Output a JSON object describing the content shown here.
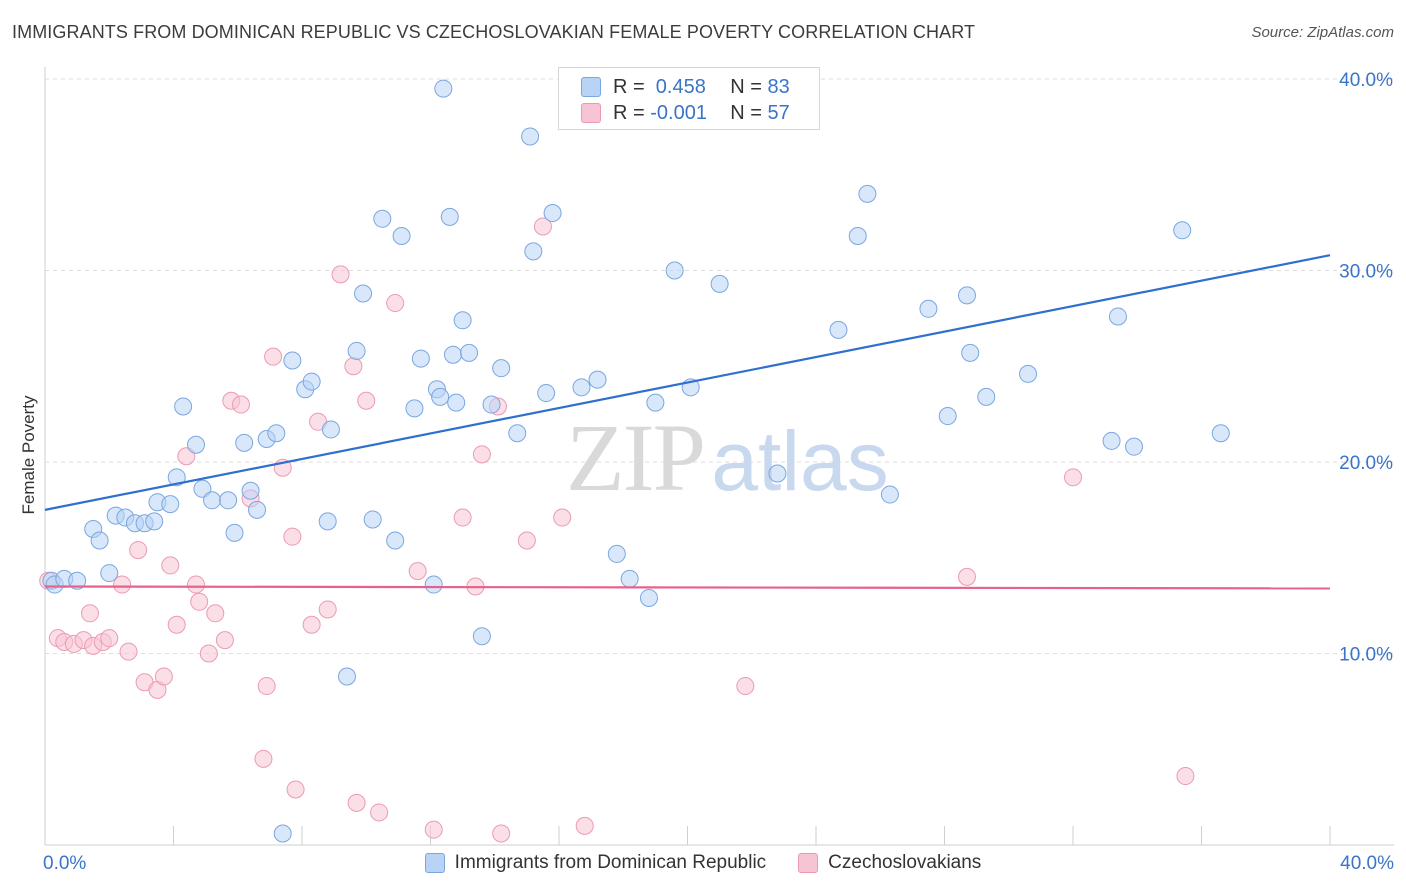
{
  "title": "IMMIGRANTS FROM DOMINICAN REPUBLIC VS CZECHOSLOVAKIAN FEMALE POVERTY CORRELATION CHART",
  "source": "Source: ZipAtlas.com",
  "watermark": {
    "zip": "ZIP",
    "atlas": "atlas"
  },
  "colors": {
    "blue_fill": "#b8d3f5",
    "blue_stroke": "#7aa7e0",
    "blue_line": "#2f6fcf",
    "pink_fill": "#f7c4d3",
    "pink_stroke": "#ec9ab4",
    "pink_line": "#e6628c",
    "axis_label": "#3a74c8",
    "grid": "#dcdcdc"
  },
  "legend": {
    "rows": [
      {
        "r_label": "R = ",
        "r_value": " 0.458",
        "n_label": "N = ",
        "n_value": "83"
      },
      {
        "r_label": "R = ",
        "r_value": "-0.001",
        "n_label": "N = ",
        "n_value": "57"
      }
    ]
  },
  "bottom_legend": [
    "Immigrants from Dominican Republic",
    "Czechoslovakians"
  ],
  "chart_data": {
    "type": "scatter",
    "title": "IMMIGRANTS FROM DOMINICAN REPUBLIC VS CZECHOSLOVAKIAN FEMALE POVERTY CORRELATION CHART",
    "xlabel": "",
    "ylabel": "Female Poverty",
    "xlim": [
      0,
      40
    ],
    "ylim": [
      0,
      40
    ],
    "x_tick_labels": [
      "0.0%",
      "40.0%"
    ],
    "y_ticks": [
      10,
      20,
      30,
      40
    ],
    "y_tick_labels": [
      "10.0%",
      "20.0%",
      "30.0%",
      "40.0%"
    ],
    "series": [
      {
        "name": "Immigrants from Dominican Republic",
        "R": 0.458,
        "N": 83,
        "trend": {
          "x": [
            0,
            40
          ],
          "y": [
            17.5,
            30.8
          ]
        },
        "points": [
          [
            0.2,
            13.8
          ],
          [
            0.3,
            13.6
          ],
          [
            0.6,
            13.9
          ],
          [
            1.0,
            13.8
          ],
          [
            1.5,
            16.5
          ],
          [
            1.7,
            15.9
          ],
          [
            2.0,
            14.2
          ],
          [
            2.2,
            17.2
          ],
          [
            2.5,
            17.1
          ],
          [
            2.8,
            16.8
          ],
          [
            3.1,
            16.8
          ],
          [
            3.4,
            16.9
          ],
          [
            3.5,
            17.9
          ],
          [
            3.9,
            17.8
          ],
          [
            4.1,
            19.2
          ],
          [
            4.3,
            22.9
          ],
          [
            4.7,
            20.9
          ],
          [
            4.9,
            18.6
          ],
          [
            5.2,
            18.0
          ],
          [
            5.7,
            18.0
          ],
          [
            5.9,
            16.3
          ],
          [
            6.2,
            21.0
          ],
          [
            6.4,
            18.5
          ],
          [
            6.6,
            17.5
          ],
          [
            6.9,
            21.2
          ],
          [
            7.2,
            21.5
          ],
          [
            7.4,
            0.6
          ],
          [
            7.7,
            25.3
          ],
          [
            8.1,
            23.8
          ],
          [
            8.3,
            24.2
          ],
          [
            8.8,
            16.9
          ],
          [
            8.9,
            21.7
          ],
          [
            9.4,
            8.8
          ],
          [
            9.7,
            25.8
          ],
          [
            9.9,
            28.8
          ],
          [
            10.2,
            17.0
          ],
          [
            10.5,
            32.7
          ],
          [
            10.9,
            15.9
          ],
          [
            11.1,
            31.8
          ],
          [
            11.5,
            22.8
          ],
          [
            11.7,
            25.4
          ],
          [
            12.1,
            13.6
          ],
          [
            12.2,
            23.8
          ],
          [
            12.6,
            32.8
          ],
          [
            12.7,
            25.6
          ],
          [
            13.0,
            27.4
          ],
          [
            12.8,
            23.1
          ],
          [
            12.3,
            23.4
          ],
          [
            12.4,
            39.5
          ],
          [
            13.2,
            25.7
          ],
          [
            13.6,
            10.9
          ],
          [
            13.9,
            23.0
          ],
          [
            14.2,
            24.9
          ],
          [
            14.7,
            21.5
          ],
          [
            15.1,
            37.0
          ],
          [
            15.2,
            31.0
          ],
          [
            15.6,
            23.6
          ],
          [
            15.8,
            33.0
          ],
          [
            16.7,
            23.9
          ],
          [
            17.2,
            24.3
          ],
          [
            17.3,
            38.5
          ],
          [
            17.8,
            15.2
          ],
          [
            18.2,
            13.9
          ],
          [
            18.8,
            12.9
          ],
          [
            19.0,
            23.1
          ],
          [
            19.6,
            30.0
          ],
          [
            20.1,
            23.9
          ],
          [
            21.0,
            29.3
          ],
          [
            22.8,
            19.4
          ],
          [
            24.7,
            26.9
          ],
          [
            25.3,
            31.8
          ],
          [
            25.6,
            34.0
          ],
          [
            26.3,
            18.3
          ],
          [
            27.5,
            28.0
          ],
          [
            28.1,
            22.4
          ],
          [
            28.7,
            28.7
          ],
          [
            28.8,
            25.7
          ],
          [
            29.3,
            23.4
          ],
          [
            30.6,
            24.6
          ],
          [
            33.2,
            21.1
          ],
          [
            33.4,
            27.6
          ],
          [
            33.9,
            20.8
          ],
          [
            35.4,
            32.1
          ],
          [
            36.6,
            21.5
          ]
        ]
      },
      {
        "name": "Czechoslovakians",
        "R": -0.001,
        "N": 57,
        "trend": {
          "x": [
            0,
            40
          ],
          "y": [
            13.5,
            13.4
          ]
        },
        "points": [
          [
            0.1,
            13.8
          ],
          [
            0.4,
            10.8
          ],
          [
            0.6,
            10.6
          ],
          [
            0.9,
            10.5
          ],
          [
            1.2,
            10.7
          ],
          [
            1.4,
            12.1
          ],
          [
            1.5,
            10.4
          ],
          [
            1.8,
            10.6
          ],
          [
            2.0,
            10.8
          ],
          [
            2.4,
            13.6
          ],
          [
            2.6,
            10.1
          ],
          [
            2.9,
            15.4
          ],
          [
            3.1,
            8.5
          ],
          [
            3.5,
            8.1
          ],
          [
            3.7,
            8.8
          ],
          [
            3.9,
            14.6
          ],
          [
            4.1,
            11.5
          ],
          [
            4.4,
            20.3
          ],
          [
            4.7,
            13.6
          ],
          [
            4.8,
            12.7
          ],
          [
            5.1,
            10.0
          ],
          [
            5.3,
            12.1
          ],
          [
            5.6,
            10.7
          ],
          [
            5.8,
            23.2
          ],
          [
            6.1,
            23.0
          ],
          [
            6.4,
            18.1
          ],
          [
            6.8,
            4.5
          ],
          [
            6.9,
            8.3
          ],
          [
            7.1,
            25.5
          ],
          [
            7.4,
            19.7
          ],
          [
            7.7,
            16.1
          ],
          [
            7.8,
            2.9
          ],
          [
            8.3,
            11.5
          ],
          [
            8.5,
            22.1
          ],
          [
            8.8,
            12.3
          ],
          [
            9.2,
            29.8
          ],
          [
            9.6,
            25.0
          ],
          [
            9.7,
            2.2
          ],
          [
            10.0,
            23.2
          ],
          [
            10.4,
            1.7
          ],
          [
            10.9,
            28.3
          ],
          [
            11.6,
            14.3
          ],
          [
            12.1,
            0.8
          ],
          [
            13.0,
            17.1
          ],
          [
            13.4,
            13.5
          ],
          [
            13.6,
            20.4
          ],
          [
            14.1,
            22.9
          ],
          [
            14.2,
            0.6
          ],
          [
            15.0,
            15.9
          ],
          [
            15.5,
            32.3
          ],
          [
            16.1,
            17.1
          ],
          [
            16.8,
            1.0
          ],
          [
            16.9,
            38.8
          ],
          [
            21.8,
            8.3
          ],
          [
            28.7,
            14.0
          ],
          [
            32.0,
            19.2
          ],
          [
            35.5,
            3.6
          ]
        ]
      }
    ]
  }
}
